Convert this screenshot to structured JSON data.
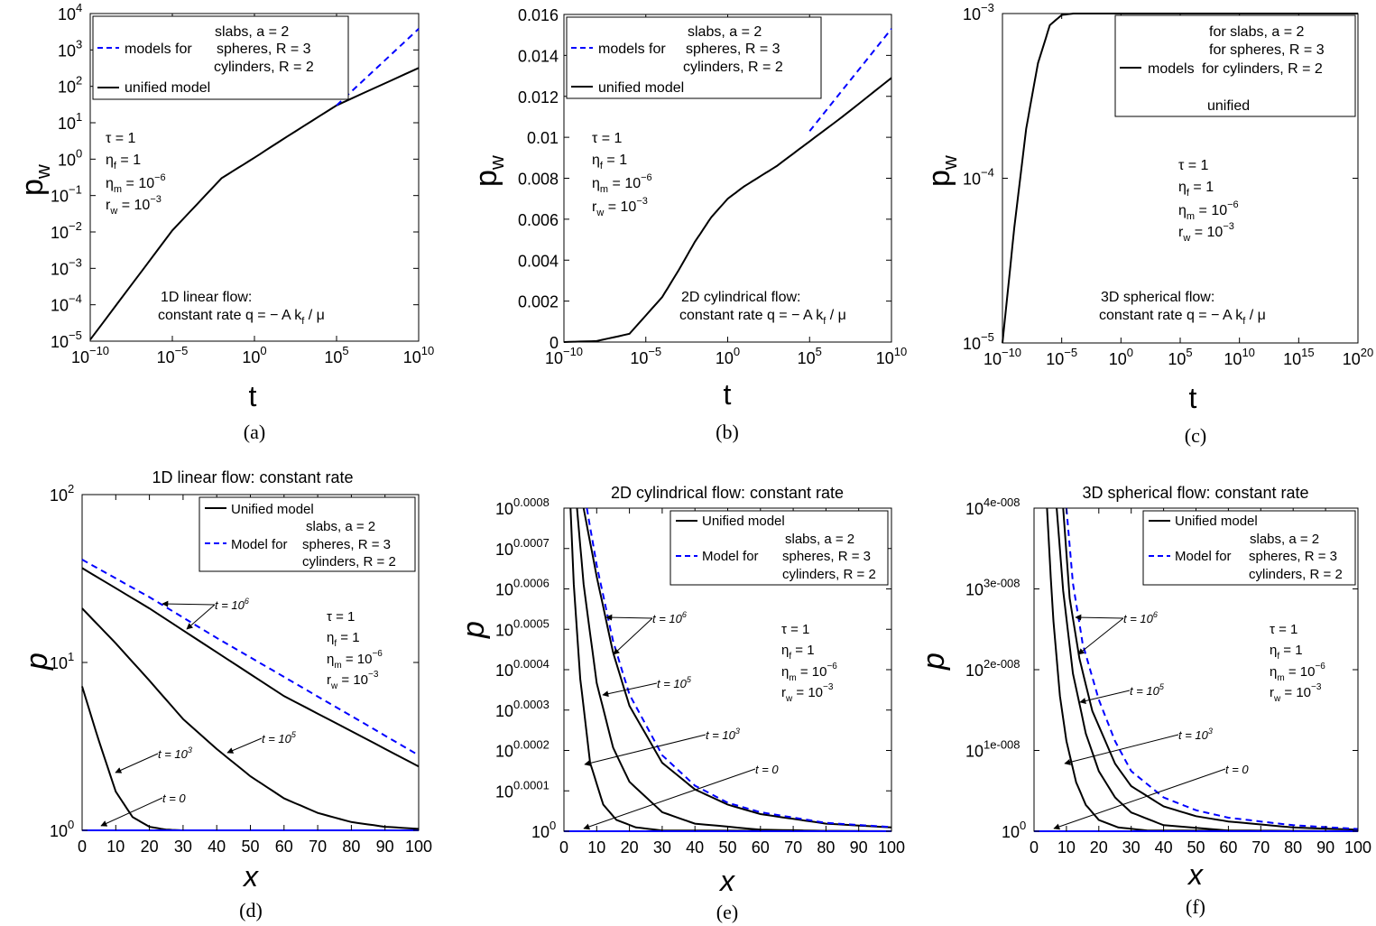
{
  "legend": {
    "slabs": "slabs, a = 2",
    "spheres": "spheres, R = 3",
    "cylinders": "cylinders, R = 2",
    "models_for": "models for",
    "unified_model": "unified model",
    "for_slabs": "for slabs, a = 2",
    "for_spheres": "for spheres, R = 3",
    "for_cylinders": "for cylinders, R = 2",
    "models": "models",
    "unified": "unified",
    "Unified_model": "Unified model",
    "Model_for": "Model for"
  },
  "params": {
    "tau": "τ = 1",
    "eta_f": "η",
    "eta_f_sub": "f",
    "eta_f_val": " = 1",
    "eta_m": "η",
    "eta_m_sub": "m",
    "eta_m_val": " = 10",
    "eta_m_exp": "−6",
    "r_w": "r",
    "r_w_sub": "w",
    "r_w_val": " = 10",
    "r_w_exp": "−3"
  },
  "flow_labels": {
    "a_line1": "1D linear flow:",
    "b_line1": "2D cylindrical flow:",
    "c_line1": "3D spherical flow:",
    "rate_prefix": "constant rate  q = − A k",
    "rate_prefix_b": "constant rate q = − A k",
    "rate_sub": "f",
    "rate_suffix": " / μ"
  },
  "panel_labels": {
    "a": "(a)",
    "b": "(b)",
    "c": "(c)",
    "d": "(d)",
    "e": "(e)",
    "f": "(f)"
  },
  "axis": {
    "ylabel_top": "p",
    "ylabel_top_sub": "w",
    "xlabel_top": "t",
    "ylabel_bottom": "p",
    "xlabel_bottom": "x"
  },
  "titles": {
    "d": "1D linear flow: constant rate",
    "e": "2D cylindrical flow: constant rate",
    "f": "3D spherical flow: constant rate"
  },
  "t_labels": {
    "t0": "t = 0",
    "t3": "t = 10",
    "t3e": "3",
    "t5": "t = 10",
    "t5e": "5",
    "t6": "t = 10",
    "t6e": "6"
  },
  "chart_data": [
    {
      "panel": "a",
      "type": "line",
      "xscale": "log",
      "yscale": "log",
      "xlim": [
        1e-10,
        10000000000.0
      ],
      "ylim": [
        1e-05,
        10000.0
      ],
      "xlabel": "t",
      "ylabel": "p_w",
      "xticks": [
        "10^-10",
        "10^-5",
        "10^0",
        "10^5",
        "10^10"
      ],
      "yticks": [
        "10^-5",
        "10^-4",
        "10^-3",
        "10^-2",
        "10^-1",
        "10^0",
        "10^1",
        "10^2",
        "10^3",
        "10^4"
      ],
      "series": [
        {
          "name": "unified model",
          "style": "solid",
          "color": "#000000",
          "x": [
            1e-10,
            1e-05,
            0.01,
            1,
            100,
            100000.0,
            10000000000.0
          ],
          "y": [
            1.1e-05,
            0.011,
            0.3,
            1.1,
            4.2,
            30,
            320
          ]
        },
        {
          "name": "models for slabs, a = 2 / spheres, R = 3 / cylinders, R = 2",
          "style": "dashed",
          "color": "#0000ff",
          "x": [
            100000.0,
            10000000000.0
          ],
          "y": [
            30,
            3800
          ]
        }
      ]
    },
    {
      "panel": "b",
      "type": "line",
      "xscale": "log",
      "yscale": "linear",
      "xlim": [
        1e-10,
        10000000000.0
      ],
      "ylim": [
        0,
        0.016
      ],
      "xlabel": "t",
      "ylabel": "p_w",
      "xticks": [
        "10^-10",
        "10^-5",
        "10^0",
        "10^5",
        "10^10"
      ],
      "yticks": [
        "0",
        "0.002",
        "0.004",
        "0.006",
        "0.008",
        "0.01",
        "0.012",
        "0.014",
        "0.016"
      ],
      "series": [
        {
          "name": "unified model",
          "style": "solid",
          "color": "#000000",
          "x": [
            1e-10,
            1e-08,
            1e-06,
            0.0001,
            0.001,
            0.01,
            0.1,
            1,
            10,
            100,
            1000,
            100000.0,
            10000000.0,
            10000000000.0
          ],
          "y": [
            0,
            5e-05,
            0.0004,
            0.0022,
            0.0035,
            0.0049,
            0.0061,
            0.007,
            0.0076,
            0.0081,
            0.0086,
            0.0098,
            0.011,
            0.0129
          ]
        },
        {
          "name": "models for slabs, a = 2 / spheres, R = 3 / cylinders, R = 2",
          "style": "dashed",
          "color": "#0000ff",
          "x": [
            100000.0,
            10000000000.0
          ],
          "y": [
            0.0103,
            0.0153
          ]
        }
      ]
    },
    {
      "panel": "c",
      "type": "line",
      "xscale": "log",
      "yscale": "log",
      "xlim": [
        1e-10,
        1e+20
      ],
      "ylim": [
        1e-05,
        0.001
      ],
      "xlabel": "t",
      "ylabel": "p_w",
      "xticks": [
        "10^-10",
        "10^-5",
        "10^0",
        "10^5",
        "10^10",
        "10^15",
        "10^20"
      ],
      "yticks": [
        "10^-5",
        "10^-4",
        "10^-3"
      ],
      "series": [
        {
          "name": "models for slabs, a = 2 / for spheres, R = 3 / for cylinders, R = 2 / unified",
          "style": "solid",
          "color": "#000000",
          "x": [
            1e-10,
            1e-09,
            1e-08,
            1e-07,
            1e-06,
            1e-05,
            0.0001,
            0.001,
            1e+20
          ],
          "y": [
            1e-05,
            5e-05,
            0.0002,
            0.0005,
            0.00085,
            0.00098,
            0.001,
            0.001,
            0.001
          ]
        }
      ]
    },
    {
      "panel": "d",
      "type": "line",
      "xscale": "linear",
      "yscale": "log",
      "xlim": [
        0,
        100
      ],
      "ylim": [
        1,
        100
      ],
      "xlabel": "x",
      "ylabel": "p",
      "title": "1D linear flow: constant rate",
      "xticks": [
        0,
        10,
        20,
        30,
        40,
        50,
        60,
        70,
        80,
        90,
        100
      ],
      "yticks": [
        "10^0",
        "10^1",
        "10^2"
      ],
      "series": [
        {
          "name": "Unified model, t = 10^6",
          "style": "solid",
          "color": "#000000",
          "x": [
            0,
            20,
            40,
            60,
            80,
            100
          ],
          "y": [
            36.5,
            21,
            11.5,
            6.3,
            3.9,
            2.4
          ]
        },
        {
          "name": "Model for, t = 10^6",
          "style": "dashed",
          "color": "#0000ff",
          "x": [
            0,
            20,
            40,
            60,
            80,
            100
          ],
          "y": [
            41,
            24.5,
            14,
            8.2,
            4.8,
            2.8
          ]
        },
        {
          "name": "t = 10^5",
          "style": "solid",
          "color": "#000000",
          "x": [
            0,
            10,
            20,
            30,
            40,
            50,
            60,
            70,
            80,
            90,
            100
          ],
          "y": [
            21,
            13,
            7.8,
            4.6,
            3.05,
            2.1,
            1.55,
            1.27,
            1.12,
            1.05,
            1.02
          ]
        },
        {
          "name": "t = 10^3",
          "style": "solid",
          "color": "#000000",
          "x": [
            0,
            5,
            10,
            15,
            20,
            25,
            30,
            100
          ],
          "y": [
            7.2,
            3.4,
            1.7,
            1.2,
            1.05,
            1.01,
            1,
            1
          ]
        },
        {
          "name": "t = 0",
          "style": "solid",
          "color": "#0000ff",
          "x": [
            0,
            100
          ],
          "y": [
            1,
            1
          ]
        }
      ]
    },
    {
      "panel": "e",
      "type": "line",
      "xscale": "linear",
      "yscale": "linear",
      "xlim": [
        0,
        100
      ],
      "ylim": [
        0,
        0.00085
      ],
      "xlabel": "x",
      "ylabel": "p",
      "title": "2D cylindrical flow: constant rate",
      "xticks": [
        0,
        10,
        20,
        30,
        40,
        50,
        60,
        70,
        80,
        90,
        100
      ],
      "yticks": [
        "10^0",
        "10^0.0001",
        "10^0.0002",
        "10^0.0003",
        "10^0.0004",
        "10^0.0005",
        "10^0.0006",
        "10^0.0007",
        "10^0.0008"
      ],
      "series": [
        {
          "name": "Unified model, t = 10^6",
          "style": "solid",
          "color": "#000000",
          "x": [
            6,
            10,
            15,
            20,
            30,
            40,
            50,
            60,
            80,
            100
          ],
          "y": [
            0.00085,
            0.00067,
            0.00047,
            0.00033,
            0.00018,
            0.00011,
            7e-05,
            4.5e-05,
            2e-05,
            1e-05
          ]
        },
        {
          "name": "Model for, t = 10^6",
          "style": "dashed",
          "color": "#0000ff",
          "x": [
            7,
            10,
            15,
            20,
            30,
            40,
            50,
            60,
            80,
            100
          ],
          "y": [
            0.00085,
            0.0007,
            0.0005,
            0.00036,
            0.0002,
            0.00012,
            7.5e-05,
            5e-05,
            2.2e-05,
            1.1e-05
          ]
        },
        {
          "name": "t = 10^5",
          "style": "solid",
          "color": "#000000",
          "x": [
            4,
            6,
            10,
            15,
            20,
            30,
            40,
            60,
            80,
            100
          ],
          "y": [
            0.00085,
            0.00065,
            0.00039,
            0.00022,
            0.00013,
            5e-05,
            2e-05,
            4e-06,
            1e-06,
            0
          ]
        },
        {
          "name": "t = 10^3",
          "style": "solid",
          "color": "#000000",
          "x": [
            2,
            3,
            5,
            8,
            12,
            16,
            22,
            30,
            100
          ],
          "y": [
            0.00085,
            0.00065,
            0.0004,
            0.00018,
            7e-05,
            3e-05,
            1e-05,
            2e-06,
            0
          ]
        },
        {
          "name": "t = 0",
          "style": "solid",
          "color": "#0000ff",
          "x": [
            0,
            100
          ],
          "y": [
            0,
            0
          ]
        }
      ]
    },
    {
      "panel": "f",
      "type": "line",
      "xscale": "linear",
      "yscale": "linear",
      "xlim": [
        0,
        100
      ],
      "ylim": [
        0,
        4.3e-08
      ],
      "xlabel": "x",
      "ylabel": "p",
      "title": "3D spherical flow: constant rate",
      "xticks": [
        0,
        10,
        20,
        30,
        40,
        50,
        60,
        70,
        80,
        90,
        100
      ],
      "yticks": [
        "10^0",
        "10^1e-008",
        "10^2e-008",
        "10^3e-008",
        "10^4e-008"
      ],
      "series": [
        {
          "name": "Unified model, t = 10^6",
          "style": "solid",
          "color": "#000000",
          "x": [
            9,
            11,
            14,
            18,
            25,
            30,
            40,
            50,
            60,
            80,
            100
          ],
          "y": [
            4.3e-08,
            3.1e-08,
            2.3e-08,
            1.6e-08,
            9e-09,
            6e-09,
            3.3e-09,
            2e-09,
            1.3e-09,
            5e-10,
            2e-10
          ]
        },
        {
          "name": "Model for, t = 10^6",
          "style": "dashed",
          "color": "#0000ff",
          "x": [
            10,
            12,
            15,
            20,
            25,
            30,
            40,
            50,
            60,
            80,
            100
          ],
          "y": [
            4.3e-08,
            3.3e-08,
            2.5e-08,
            1.75e-08,
            1.2e-08,
            8e-09,
            4.5e-09,
            2.8e-09,
            1.8e-09,
            8e-10,
            3e-10
          ]
        },
        {
          "name": "t = 10^5",
          "style": "solid",
          "color": "#000000",
          "x": [
            7,
            9,
            12,
            16,
            20,
            25,
            30,
            40,
            60,
            100
          ],
          "y": [
            4.3e-08,
            3.2e-08,
            2.1e-08,
            1.3e-08,
            8e-09,
            4.5e-09,
            2.5e-09,
            8e-10,
            1e-10,
            0
          ]
        },
        {
          "name": "t = 10^3",
          "style": "solid",
          "color": "#000000",
          "x": [
            4,
            5,
            6,
            8,
            10,
            13,
            16,
            20,
            26,
            35,
            100
          ],
          "y": [
            4.3e-08,
            3.5e-08,
            2.8e-08,
            1.8e-08,
            1.2e-08,
            6.5e-09,
            3.5e-09,
            1.5e-09,
            5e-10,
            1e-10,
            0
          ]
        },
        {
          "name": "t = 0",
          "style": "solid",
          "color": "#0000ff",
          "x": [
            0,
            100
          ],
          "y": [
            0,
            0
          ]
        }
      ]
    }
  ]
}
